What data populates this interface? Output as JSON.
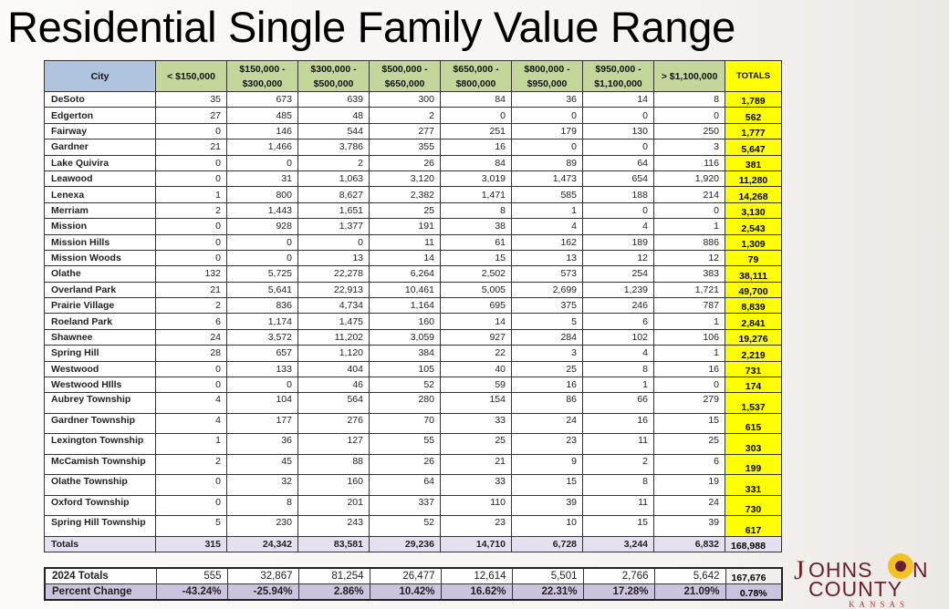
{
  "title": "Residential Single Family Value Range",
  "table": {
    "headers": [
      "City",
      "< $150,000",
      "$150,000 - $300,000",
      "$300,000 - $500,000",
      "$500,000 - $650,000",
      "$650,000 - $800,000",
      "$800,000 - $950,000",
      "$950,000 - $1,100,000",
      "> $1,100,000",
      "TOTALS"
    ],
    "rows": [
      [
        "DeSoto",
        "35",
        "673",
        "639",
        "300",
        "84",
        "36",
        "14",
        "8",
        "1,789"
      ],
      [
        "Edgerton",
        "27",
        "485",
        "48",
        "2",
        "0",
        "0",
        "0",
        "0",
        "562"
      ],
      [
        "Fairway",
        "0",
        "146",
        "544",
        "277",
        "251",
        "179",
        "130",
        "250",
        "1,777"
      ],
      [
        "Gardner",
        "21",
        "1,466",
        "3,786",
        "355",
        "16",
        "0",
        "0",
        "3",
        "5,647"
      ],
      [
        "Lake Quivira",
        "0",
        "0",
        "2",
        "26",
        "84",
        "89",
        "64",
        "116",
        "381"
      ],
      [
        "Leawood",
        "0",
        "31",
        "1,063",
        "3,120",
        "3,019",
        "1,473",
        "654",
        "1,920",
        "11,280"
      ],
      [
        "Lenexa",
        "1",
        "800",
        "8,627",
        "2,382",
        "1,471",
        "585",
        "188",
        "214",
        "14,268"
      ],
      [
        "Merriam",
        "2",
        "1,443",
        "1,651",
        "25",
        "8",
        "1",
        "0",
        "0",
        "3,130"
      ],
      [
        "Mission",
        "0",
        "928",
        "1,377",
        "191",
        "38",
        "4",
        "4",
        "1",
        "2,543"
      ],
      [
        "Mission Hills",
        "0",
        "0",
        "0",
        "11",
        "61",
        "162",
        "189",
        "886",
        "1,309"
      ],
      [
        "Mission Woods",
        "0",
        "0",
        "13",
        "14",
        "15",
        "13",
        "12",
        "12",
        "79"
      ],
      [
        "Olathe",
        "132",
        "5,725",
        "22,278",
        "6,264",
        "2,502",
        "573",
        "254",
        "383",
        "38,111"
      ],
      [
        "Overland Park",
        "21",
        "5,641",
        "22,913",
        "10,461",
        "5,005",
        "2,699",
        "1,239",
        "1,721",
        "49,700"
      ],
      [
        "Prairie Village",
        "2",
        "836",
        "4,734",
        "1,164",
        "695",
        "375",
        "246",
        "787",
        "8,839"
      ],
      [
        "Roeland Park",
        "6",
        "1,174",
        "1,475",
        "160",
        "14",
        "5",
        "6",
        "1",
        "2,841"
      ],
      [
        "Shawnee",
        "24",
        "3,572",
        "11,202",
        "3,059",
        "927",
        "284",
        "102",
        "106",
        "19,276"
      ],
      [
        "Spring Hill",
        "28",
        "657",
        "1,120",
        "384",
        "22",
        "3",
        "4",
        "1",
        "2,219"
      ],
      [
        "Westwood",
        "0",
        "133",
        "404",
        "105",
        "40",
        "25",
        "8",
        "16",
        "731"
      ],
      [
        "Westwood HIlls",
        "0",
        "0",
        "46",
        "52",
        "59",
        "16",
        "1",
        "0",
        "174"
      ],
      [
        "Aubrey Township",
        "4",
        "104",
        "564",
        "280",
        "154",
        "86",
        "66",
        "279",
        "1,537"
      ],
      [
        "Gardner Township",
        "4",
        "177",
        "276",
        "70",
        "33",
        "24",
        "16",
        "15",
        "615"
      ],
      [
        "Lexington Township",
        "1",
        "36",
        "127",
        "55",
        "25",
        "23",
        "11",
        "25",
        "303"
      ],
      [
        "McCamish Township",
        "2",
        "45",
        "88",
        "26",
        "21",
        "9",
        "2",
        "6",
        "199"
      ],
      [
        "Olathe Township",
        "0",
        "32",
        "160",
        "64",
        "33",
        "15",
        "8",
        "19",
        "331"
      ],
      [
        "Oxford Township",
        "0",
        "8",
        "201",
        "337",
        "110",
        "39",
        "11",
        "24",
        "730"
      ],
      [
        "Spring Hill Township",
        "5",
        "230",
        "243",
        "52",
        "23",
        "10",
        "15",
        "39",
        "617"
      ]
    ],
    "totals": [
      "Totals",
      "315",
      "24,342",
      "83,581",
      "29,236",
      "14,710",
      "6,728",
      "3,244",
      "6,832",
      "168,988"
    ]
  },
  "comparison": {
    "prior_totals": [
      "2024 Totals",
      "555",
      "32,867",
      "81,254",
      "26,477",
      "12,614",
      "5,501",
      "2,766",
      "5,642",
      "167,676"
    ],
    "percent_change": [
      "Percent Change",
      "-43.24%",
      "-25.94%",
      "2.86%",
      "10.42%",
      "16.62%",
      "22.31%",
      "17.28%",
      "21.09%",
      "0.78%"
    ]
  },
  "logo": {
    "line1": "JOHNSON",
    "line2": "COUNTY",
    "line3": "KANSAS"
  },
  "colors": {
    "header_city": "#b0c4de",
    "header_range": "#c4d79b",
    "totals_column": "#ffff00",
    "totals_row": "#e4e0ef",
    "percent_row": "#cdc3df",
    "logo": "#6b1f2a",
    "logo_sun": "#f5b800"
  }
}
